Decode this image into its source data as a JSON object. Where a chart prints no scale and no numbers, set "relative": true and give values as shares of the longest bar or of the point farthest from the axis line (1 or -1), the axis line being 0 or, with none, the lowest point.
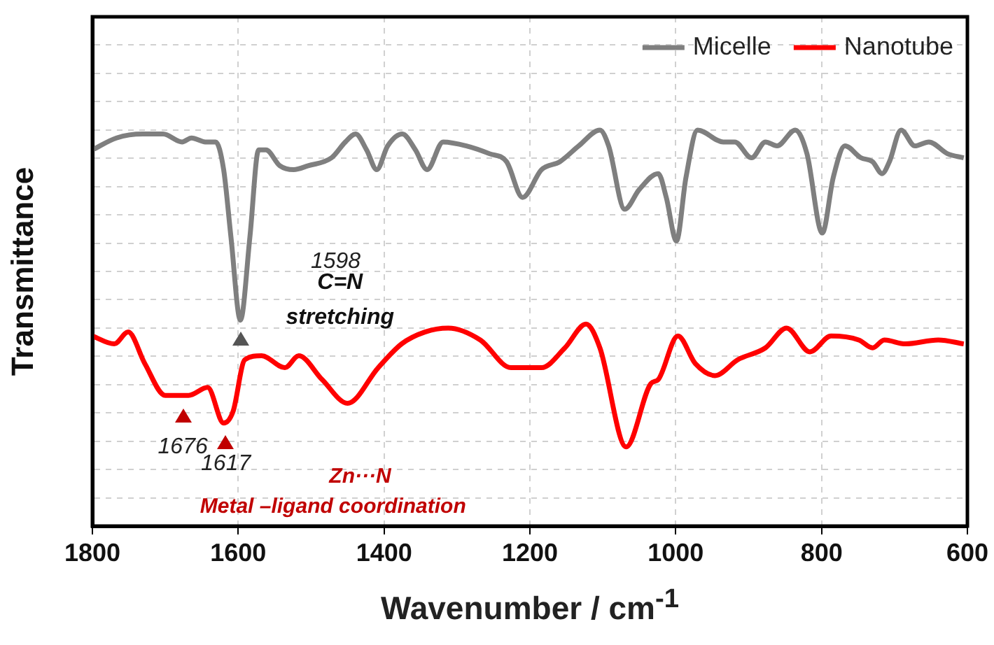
{
  "chart_data": {
    "type": "line",
    "xlabel": "Wavenumber / cm$^{-1}$",
    "ylabel": "Transmittance",
    "relative": true,
    "xlim": [
      1800,
      600
    ],
    "xticks": [
      1800,
      1600,
      1400,
      1200,
      1000,
      800,
      600
    ],
    "grid": true,
    "legend": "top right",
    "marker": "none",
    "line_style": "solid",
    "series": [
      {
        "name": "Micelle",
        "color": "#7f7f7f",
        "x": [
          1800,
          1767,
          1731,
          1703,
          1677,
          1664,
          1645,
          1631,
          1620,
          1610,
          1597,
          1584,
          1572,
          1562,
          1543,
          1524,
          1504,
          1472,
          1453,
          1439,
          1424,
          1410,
          1395,
          1375,
          1357,
          1341,
          1319,
          1287,
          1255,
          1232,
          1210,
          1184,
          1159,
          1133,
          1104,
          1092,
          1070,
          1050,
          1024,
          1013,
          999,
          986,
          970,
          935,
          919,
          896,
          877,
          861,
          836,
          820,
          799,
          784,
          768,
          746,
          730,
          717,
          707,
          691,
          672,
          653,
          627,
          605
        ],
        "values": [
          0.95,
          0.98,
          0.99,
          0.99,
          0.97,
          0.98,
          0.97,
          0.97,
          0.9,
          0.73,
          0.52,
          0.73,
          0.95,
          0.95,
          0.91,
          0.9,
          0.91,
          0.93,
          0.97,
          0.99,
          0.95,
          0.9,
          0.96,
          0.99,
          0.95,
          0.9,
          0.97,
          0.96,
          0.94,
          0.92,
          0.83,
          0.9,
          0.92,
          0.96,
          1.0,
          0.96,
          0.8,
          0.85,
          0.89,
          0.83,
          0.72,
          0.88,
          1.0,
          0.97,
          0.97,
          0.93,
          0.97,
          0.96,
          1.0,
          0.94,
          0.74,
          0.88,
          0.96,
          0.93,
          0.92,
          0.89,
          0.92,
          1.0,
          0.96,
          0.97,
          0.94,
          0.93
        ]
      },
      {
        "name": "Nanotube",
        "color": "#ff0000",
        "x": [
          1800,
          1770,
          1751,
          1728,
          1700,
          1668,
          1642,
          1620,
          1607,
          1591,
          1568,
          1536,
          1517,
          1485,
          1450,
          1408,
          1376,
          1344,
          1312,
          1268,
          1226,
          1200,
          1184,
          1152,
          1123,
          1104,
          1068,
          1034,
          1024,
          997,
          973,
          946,
          915,
          877,
          848,
          816,
          787,
          749,
          730,
          714,
          685,
          640,
          605
        ],
        "values": [
          0.48,
          0.46,
          0.49,
          0.41,
          0.33,
          0.33,
          0.35,
          0.26,
          0.29,
          0.42,
          0.43,
          0.4,
          0.43,
          0.37,
          0.31,
          0.4,
          0.46,
          0.49,
          0.5,
          0.47,
          0.4,
          0.4,
          0.4,
          0.45,
          0.51,
          0.45,
          0.2,
          0.36,
          0.37,
          0.48,
          0.41,
          0.38,
          0.42,
          0.45,
          0.5,
          0.44,
          0.48,
          0.47,
          0.45,
          0.47,
          0.46,
          0.47,
          0.46
        ]
      }
    ],
    "annotations": [
      "1598",
      "C=N",
      "stretching",
      {
        "text": "1676",
        "x": 1676,
        "y": 0.33
      },
      {
        "text": "1617",
        "x": 1617,
        "y": 0.26
      },
      "Zn···N",
      "Metal –ligand coordination"
    ]
  }
}
